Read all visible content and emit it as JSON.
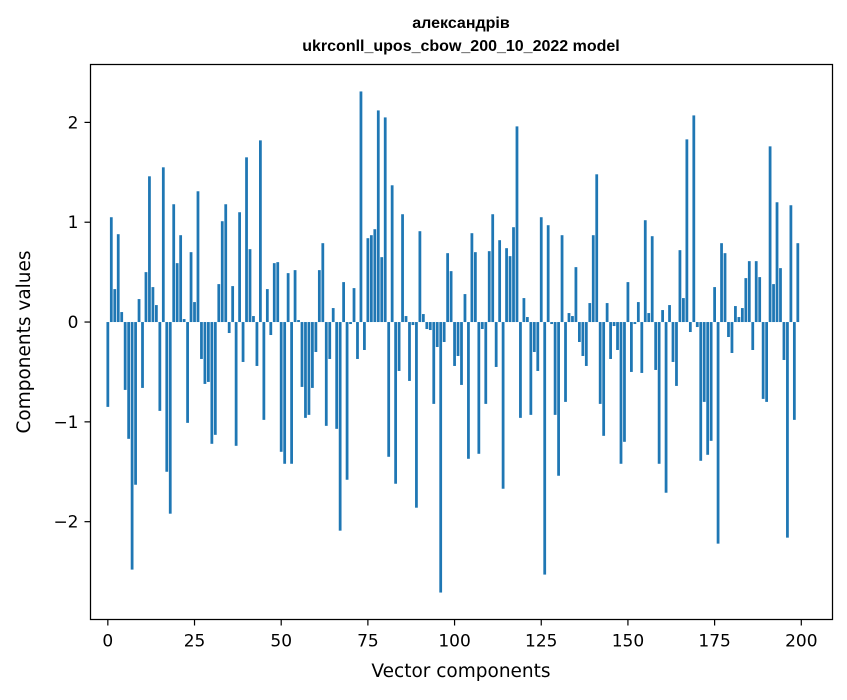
{
  "chart_data": {
    "type": "bar",
    "title_line1": "александрів",
    "title_line2": "ukrconll_upos_cbow_200_10_2022 model",
    "xlabel": "Vector components",
    "ylabel": "Components values",
    "xlim": [
      -5,
      209
    ],
    "ylim": [
      -2.98,
      2.58
    ],
    "xticks": [
      0,
      25,
      50,
      75,
      100,
      125,
      150,
      175,
      200
    ],
    "yticks": [
      -2,
      -1,
      0,
      1,
      2
    ],
    "ytick_labels": [
      "−2",
      "−1",
      "0",
      "1",
      "2"
    ],
    "color": "#1f77b4",
    "grid": false,
    "x_start": 0,
    "values": [
      -0.85,
      1.05,
      0.33,
      0.88,
      0.1,
      -0.68,
      -1.17,
      -2.48,
      -1.63,
      0.23,
      -0.66,
      0.5,
      1.46,
      0.35,
      0.17,
      -0.89,
      1.55,
      -1.5,
      -1.92,
      1.18,
      0.59,
      0.87,
      0.03,
      -1.01,
      0.7,
      0.2,
      1.31,
      -0.37,
      -0.62,
      -0.6,
      -1.22,
      -1.13,
      0.38,
      1.01,
      1.18,
      -0.11,
      0.36,
      -1.24,
      1.1,
      -0.4,
      1.65,
      0.73,
      0.06,
      -0.44,
      1.82,
      -0.98,
      0.33,
      -0.13,
      0.59,
      0.6,
      -1.3,
      -1.42,
      0.49,
      -1.42,
      0.52,
      0.02,
      -0.65,
      -0.96,
      -0.93,
      -0.66,
      -0.3,
      0.52,
      0.79,
      -1.04,
      -0.37,
      0.14,
      -1.07,
      -2.09,
      0.4,
      -1.58,
      -0.02,
      0.34,
      -0.37,
      2.31,
      -0.28,
      0.84,
      0.87,
      0.93,
      2.12,
      0.65,
      2.05,
      -1.35,
      1.37,
      -1.62,
      -0.49,
      1.08,
      0.06,
      -0.59,
      -0.03,
      -1.86,
      0.91,
      0.08,
      -0.07,
      -0.08,
      -0.82,
      -0.25,
      -2.71,
      -0.2,
      0.69,
      0.51,
      -0.44,
      -0.34,
      -0.63,
      0.28,
      -1.37,
      0.89,
      0.7,
      -1.32,
      -0.07,
      -0.82,
      0.71,
      1.08,
      -0.45,
      0.82,
      -1.67,
      0.74,
      0.66,
      0.95,
      1.96,
      -0.96,
      0.24,
      0.05,
      -0.93,
      -0.3,
      -0.49,
      1.05,
      -2.53,
      0.97,
      -0.02,
      -0.93,
      -1.54,
      0.87,
      -0.8,
      0.09,
      0.06,
      0.55,
      -0.2,
      -0.34,
      -0.44,
      0.19,
      0.87,
      1.48,
      -0.82,
      -1.14,
      0.19,
      -0.37,
      -0.04,
      -0.28,
      -1.42,
      -1.2,
      0.4,
      -0.5,
      -0.02,
      0.2,
      -0.51,
      1.02,
      0.09,
      0.86,
      -0.48,
      -1.42,
      0.12,
      -1.71,
      0.17,
      -0.4,
      -0.64,
      0.72,
      0.24,
      1.83,
      -0.1,
      2.07,
      -0.05,
      -1.39,
      -0.8,
      -1.33,
      -1.19,
      0.35,
      -2.22,
      0.79,
      0.69,
      -0.15,
      -0.31,
      0.16,
      0.05,
      0.14,
      0.44,
      0.61,
      -0.28,
      0.61,
      0.45,
      -0.77,
      -0.8,
      1.76,
      0.38,
      1.2,
      0.54,
      -0.38,
      -2.16,
      1.17,
      -0.98,
      0.79
    ]
  }
}
